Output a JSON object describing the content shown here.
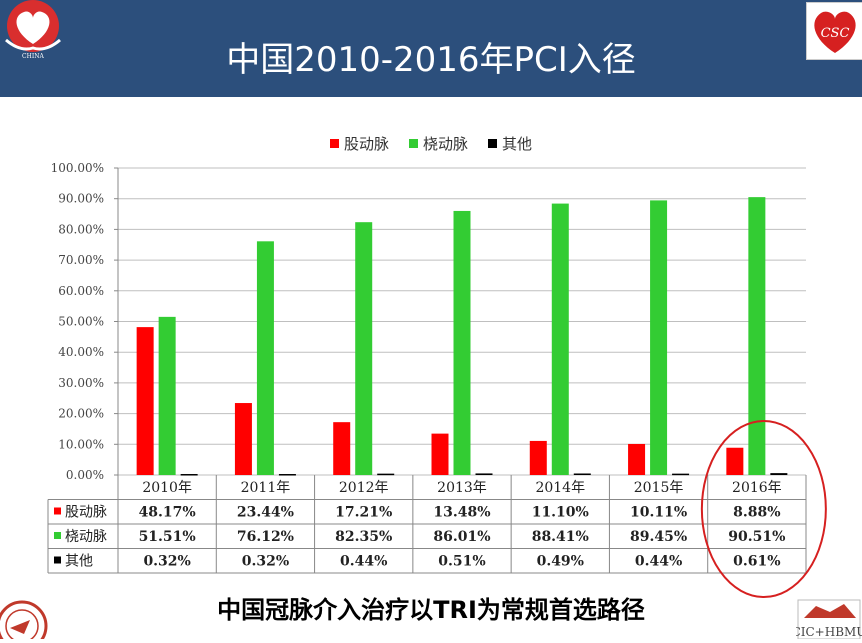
{
  "slide": {
    "title": "中国2010-2016年PCI入径",
    "subtitle": "中国冠脉介入治疗以TRI为常规首选路径",
    "logo_right_text": "CSC",
    "logo_br_text": "CIC+HBMU",
    "colors": {
      "header": "#2c4f7c",
      "femoral": "#ff0000",
      "radial": "#33cc33",
      "other": "#000000",
      "circle": "#d62020"
    }
  },
  "chart_data": {
    "type": "bar",
    "categories": [
      "2010年",
      "2011年",
      "2012年",
      "2013年",
      "2014年",
      "2015年",
      "2016年"
    ],
    "series": [
      {
        "name": "股动脉",
        "color": "#ff0000",
        "values": [
          48.17,
          23.44,
          17.21,
          13.48,
          11.1,
          10.11,
          8.88
        ],
        "labels": [
          "48.17%",
          "23.44%",
          "17.21%",
          "13.48%",
          "11.10%",
          "10.11%",
          "8.88%"
        ]
      },
      {
        "name": "桡动脉",
        "color": "#33cc33",
        "values": [
          51.51,
          76.12,
          82.35,
          86.01,
          88.41,
          89.45,
          90.51
        ],
        "labels": [
          "51.51%",
          "76.12%",
          "82.35%",
          "86.01%",
          "88.41%",
          "89.45%",
          "90.51%"
        ]
      },
      {
        "name": "其他",
        "color": "#000000",
        "values": [
          0.32,
          0.32,
          0.44,
          0.51,
          0.49,
          0.44,
          0.61
        ],
        "labels": [
          "0.32%",
          "0.32%",
          "0.44%",
          "0.51%",
          "0.49%",
          "0.44%",
          "0.61%"
        ]
      }
    ],
    "yticks": [
      "0.00%",
      "10.00%",
      "20.00%",
      "30.00%",
      "40.00%",
      "50.00%",
      "60.00%",
      "70.00%",
      "80.00%",
      "90.00%",
      "100.00%"
    ],
    "ylim": [
      0,
      100
    ],
    "grid": true,
    "legend": "top",
    "data_table": true,
    "highlight": "2016年"
  }
}
